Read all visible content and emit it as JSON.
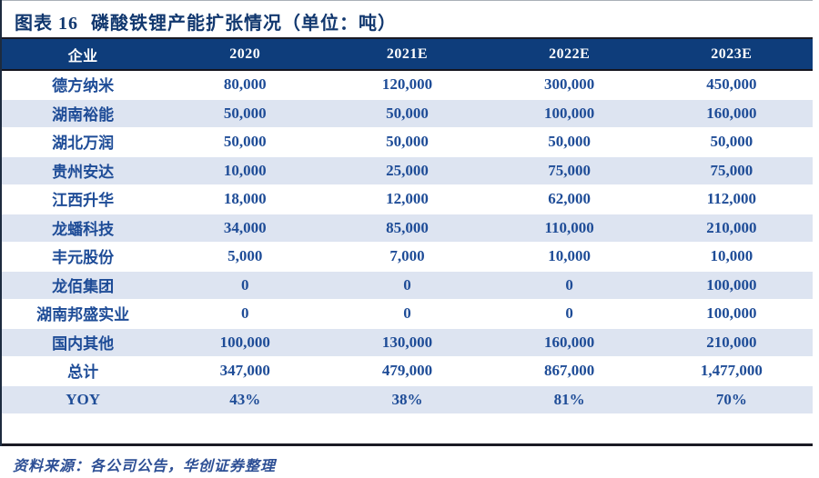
{
  "title": {
    "figure_label": "图表 16",
    "text": "磷酸铁锂产能扩张情况（单位：吨）"
  },
  "table": {
    "columns": [
      "企业",
      "2020",
      "2021E",
      "2022E",
      "2023E"
    ],
    "rows": [
      {
        "company": "德方纳米",
        "values": [
          "80,000",
          "120,000",
          "300,000",
          "450,000"
        ]
      },
      {
        "company": "湖南裕能",
        "values": [
          "50,000",
          "50,000",
          "100,000",
          "160,000"
        ]
      },
      {
        "company": "湖北万润",
        "values": [
          "50,000",
          "50,000",
          "50,000",
          "50,000"
        ]
      },
      {
        "company": "贵州安达",
        "values": [
          "10,000",
          "25,000",
          "75,000",
          "75,000"
        ]
      },
      {
        "company": "江西升华",
        "values": [
          "18,000",
          "12,000",
          "62,000",
          "112,000"
        ]
      },
      {
        "company": "龙蟠科技",
        "values": [
          "34,000",
          "85,000",
          "110,000",
          "210,000"
        ]
      },
      {
        "company": "丰元股份",
        "values": [
          "5,000",
          "7,000",
          "10,000",
          "10,000"
        ]
      },
      {
        "company": "龙佰集团",
        "values": [
          "0",
          "0",
          "0",
          "100,000"
        ]
      },
      {
        "company": "湖南邦盛实业",
        "values": [
          "0",
          "0",
          "0",
          "100,000"
        ]
      },
      {
        "company": "国内其他",
        "values": [
          "100,000",
          "130,000",
          "160,000",
          "210,000"
        ]
      },
      {
        "company": "总计",
        "values": [
          "347,000",
          "479,000",
          "867,000",
          "1,477,000"
        ]
      },
      {
        "company": "YOY",
        "values": [
          "43%",
          "38%",
          "81%",
          "70%"
        ]
      }
    ]
  },
  "footer": {
    "source": "资料来源：各公司公告，华创证券整理"
  },
  "colors": {
    "header_bg": "#0e3d7b",
    "stripe_bg": "#dde4f1",
    "cell_text": "#1e4c97",
    "header_text": "#ffffff",
    "title_text": "#12386f",
    "source_text": "#2d4f95",
    "rule_dark": "#1a1a24"
  },
  "chart_data": {
    "type": "table",
    "title": "磷酸铁锂产能扩张情况（单位：吨）",
    "columns": [
      "企业",
      "2020",
      "2021E",
      "2022E",
      "2023E"
    ],
    "rows": [
      [
        "德方纳米",
        80000,
        120000,
        300000,
        450000
      ],
      [
        "湖南裕能",
        50000,
        50000,
        100000,
        160000
      ],
      [
        "湖北万润",
        50000,
        50000,
        50000,
        50000
      ],
      [
        "贵州安达",
        10000,
        25000,
        75000,
        75000
      ],
      [
        "江西升华",
        18000,
        12000,
        62000,
        112000
      ],
      [
        "龙蟠科技",
        34000,
        85000,
        110000,
        210000
      ],
      [
        "丰元股份",
        5000,
        7000,
        10000,
        10000
      ],
      [
        "龙佰集团",
        0,
        0,
        0,
        100000
      ],
      [
        "湖南邦盛实业",
        0,
        0,
        0,
        100000
      ],
      [
        "国内其他",
        100000,
        130000,
        160000,
        210000
      ],
      [
        "总计",
        347000,
        479000,
        867000,
        1477000
      ],
      [
        "YOY",
        "43%",
        "38%",
        "81%",
        "70%"
      ]
    ]
  }
}
